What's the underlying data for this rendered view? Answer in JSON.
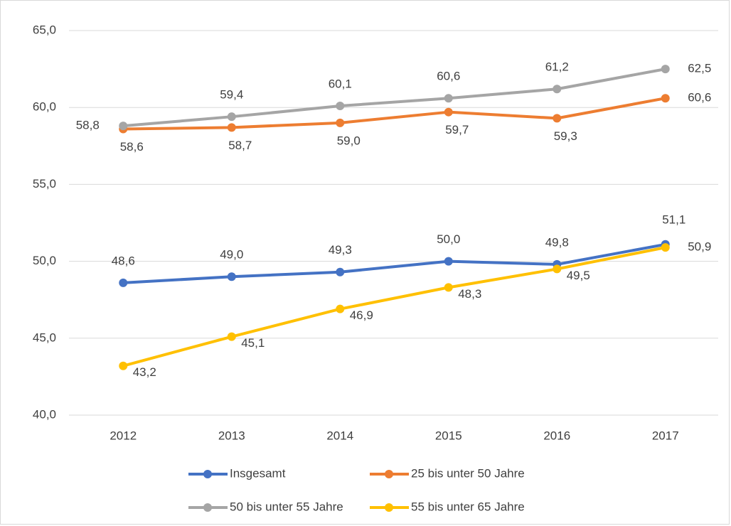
{
  "chart_data": {
    "type": "line",
    "categories": [
      "2012",
      "2013",
      "2014",
      "2015",
      "2016",
      "2017"
    ],
    "series": [
      {
        "name": "Insgesamt",
        "color": "#4472c4",
        "values": [
          48.6,
          49.0,
          49.3,
          50.0,
          49.8,
          51.1
        ],
        "value_labels": [
          "48,6",
          "49,0",
          "49,3",
          "50,0",
          "49,8",
          "51,1"
        ]
      },
      {
        "name": "25 bis unter 50 Jahre",
        "color": "#ed7d31",
        "values": [
          58.6,
          58.7,
          59.0,
          59.7,
          59.3,
          60.6
        ],
        "value_labels": [
          "58,6",
          "58,7",
          "59,0",
          "59,7",
          "59,3",
          "60,6"
        ]
      },
      {
        "name": "50 bis unter 55 Jahre",
        "color": "#a5a5a5",
        "values": [
          58.8,
          59.4,
          60.1,
          60.6,
          61.2,
          62.5
        ],
        "value_labels": [
          "58,8",
          "59,4",
          "60,1",
          "60,6",
          "61,2",
          "62,5"
        ]
      },
      {
        "name": "55 bis unter 65 Jahre",
        "color": "#ffc000",
        "values": [
          43.2,
          45.1,
          46.9,
          48.3,
          49.5,
          50.9
        ],
        "value_labels": [
          "43,2",
          "45,1",
          "46,9",
          "48,3",
          "49,5",
          "50,9"
        ]
      }
    ],
    "ylim": [
      40,
      65
    ],
    "yticks": [
      {
        "value": 40,
        "label": "40,0"
      },
      {
        "value": 45,
        "label": "45,0"
      },
      {
        "value": 50,
        "label": "50,0"
      },
      {
        "value": 55,
        "label": "55,0"
      },
      {
        "value": 60,
        "label": "60,0"
      },
      {
        "value": 65,
        "label": "65,0"
      }
    ],
    "grid": true,
    "legend": "bottom"
  }
}
